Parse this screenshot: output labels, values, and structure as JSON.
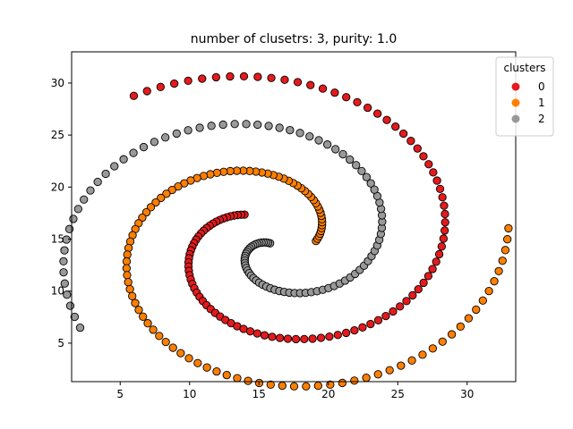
{
  "chart_data": {
    "type": "scatter",
    "title": "number of clusetrs: 3, purity: 1.0",
    "xlabel": "",
    "ylabel": "",
    "xlim": [
      1.5,
      33.5
    ],
    "ylim": [
      1.3,
      33.0
    ],
    "xticks": [
      5,
      10,
      15,
      20,
      25,
      30
    ],
    "yticks": [
      5,
      10,
      15,
      20,
      25,
      30
    ],
    "grid": false,
    "legend": {
      "title": "clusters",
      "placement": "top-right"
    },
    "spiral_params": {
      "center": [
        15.8,
        14.6
      ],
      "samples_per_series": 104,
      "tightness": 2.21
    },
    "series": [
      {
        "name": "0",
        "color": "#e41a1c",
        "theta_start": 1.5,
        "theta_end": 7.8,
        "theta_offset": 0.66
      },
      {
        "name": "1",
        "color": "#ff7f00",
        "theta_start": 1.5,
        "theta_end": 7.8,
        "theta_offset": 4.85
      },
      {
        "name": "2",
        "color": "#999999",
        "theta_start": 0.0,
        "theta_end": 7.2,
        "theta_offset": 2.76
      }
    ]
  }
}
